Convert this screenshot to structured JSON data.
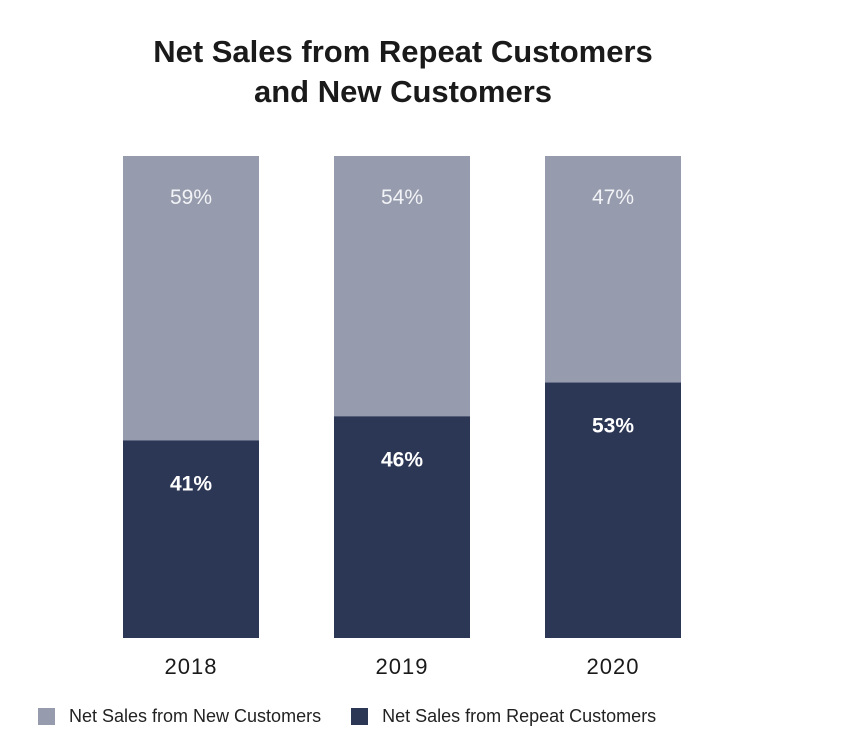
{
  "colors": {
    "new_customers": "#969cad",
    "repeat_customers": "#2c3655",
    "label_on_new": "#f2f3f6",
    "label_on_repeat": "#ffffff",
    "axis_text": "#1a1a1a"
  },
  "chart_data": {
    "type": "bar",
    "stacked": true,
    "title_lines": [
      "Net Sales from Repeat Customers",
      "and New Customers"
    ],
    "categories": [
      "2018",
      "2019",
      "2020"
    ],
    "series": [
      {
        "name": "Net Sales from Repeat Customers",
        "values": [
          41,
          46,
          53
        ],
        "labels": [
          "41%",
          "46%",
          "53%"
        ],
        "position": "bottom"
      },
      {
        "name": "Net Sales from New Customers",
        "values": [
          59,
          54,
          47
        ],
        "labels": [
          "59%",
          "54%",
          "47%"
        ],
        "position": "top"
      }
    ],
    "ylim": [
      0,
      100
    ],
    "grid": false,
    "legend": {
      "placement": "bottom",
      "entries": [
        "Net Sales from New Customers",
        "Net Sales from Repeat Customers"
      ]
    }
  }
}
